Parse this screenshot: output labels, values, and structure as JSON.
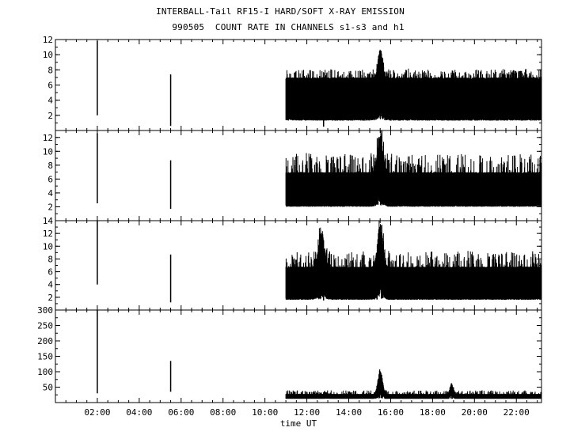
{
  "title_line1": "INTERBALL-Tail RF15-I HARD/SOFT X-RAY EMISSION",
  "title_line2": "990505  COUNT RATE IN CHANNELS s1-s3 and h1",
  "chart_data": {
    "type": "line",
    "xlabel": "time UT",
    "xlim_hours": [
      0,
      23.2
    ],
    "x_tick_labels": [
      "02:00",
      "04:00",
      "06:00",
      "08:00",
      "10:00",
      "12:00",
      "14:00",
      "16:00",
      "18:00",
      "20:00",
      "22:00"
    ],
    "x_ticks_hours": [
      2,
      4,
      6,
      8,
      10,
      12,
      14,
      16,
      18,
      20,
      22
    ],
    "panels": [
      {
        "name": "s1",
        "ylim": [
          0,
          12
        ],
        "yticks": [
          2,
          4,
          6,
          8,
          10,
          12
        ],
        "coverage_start_hours": 11.0,
        "baseline_low": 1.3,
        "baseline_high": 7.0,
        "noise_max": 8.2,
        "spikes": [
          {
            "t": 2.0,
            "low": 2.0,
            "high": 11.8
          },
          {
            "t": 5.5,
            "low": 0.6,
            "high": 7.4
          },
          {
            "t": 12.8,
            "low": 0.5,
            "high": 7.0
          }
        ],
        "flares": [
          {
            "t": 15.5,
            "peak": 11.0,
            "width": 0.15
          }
        ]
      },
      {
        "name": "s2",
        "ylim": [
          0,
          13
        ],
        "yticks": [
          2,
          4,
          6,
          8,
          10,
          12
        ],
        "coverage_start_hours": 11.0,
        "baseline_low": 2.0,
        "baseline_high": 7.0,
        "noise_max": 9.8,
        "spikes": [
          {
            "t": 2.0,
            "low": 2.5,
            "high": 12.6
          },
          {
            "t": 5.5,
            "low": 1.7,
            "high": 8.7
          },
          {
            "t": 12.8,
            "low": 3.5,
            "high": 5.0
          }
        ],
        "flares": [
          {
            "t": 15.5,
            "peak": 12.8,
            "width": 0.18
          }
        ]
      },
      {
        "name": "s3",
        "ylim": [
          0,
          14
        ],
        "yticks": [
          2,
          4,
          6,
          8,
          10,
          12,
          14
        ],
        "coverage_start_hours": 11.0,
        "baseline_low": 1.6,
        "baseline_high": 6.8,
        "noise_max": 9.3,
        "spikes": [
          {
            "t": 2.0,
            "low": 4.0,
            "high": 14.0
          },
          {
            "t": 5.5,
            "low": 1.2,
            "high": 8.7
          },
          {
            "t": 12.8,
            "low": 1.5,
            "high": 8.0
          }
        ],
        "flares": [
          {
            "t": 12.7,
            "peak": 12.5,
            "width": 0.2
          },
          {
            "t": 15.5,
            "peak": 14.0,
            "width": 0.18
          }
        ]
      },
      {
        "name": "h1",
        "ylim": [
          0,
          300
        ],
        "yticks": [
          50,
          100,
          150,
          200,
          250,
          300
        ],
        "coverage_start_hours": 11.0,
        "baseline_low": 12,
        "baseline_high": 28,
        "noise_max": 40,
        "spikes": [
          {
            "t": 2.0,
            "low": 30,
            "high": 300
          },
          {
            "t": 5.5,
            "low": 35,
            "high": 135
          }
        ],
        "flares": [
          {
            "t": 15.5,
            "peak": 112,
            "width": 0.15
          },
          {
            "t": 13.0,
            "peak": 30,
            "width": 0.2
          },
          {
            "t": 18.9,
            "peak": 65,
            "width": 0.1
          }
        ]
      }
    ]
  }
}
